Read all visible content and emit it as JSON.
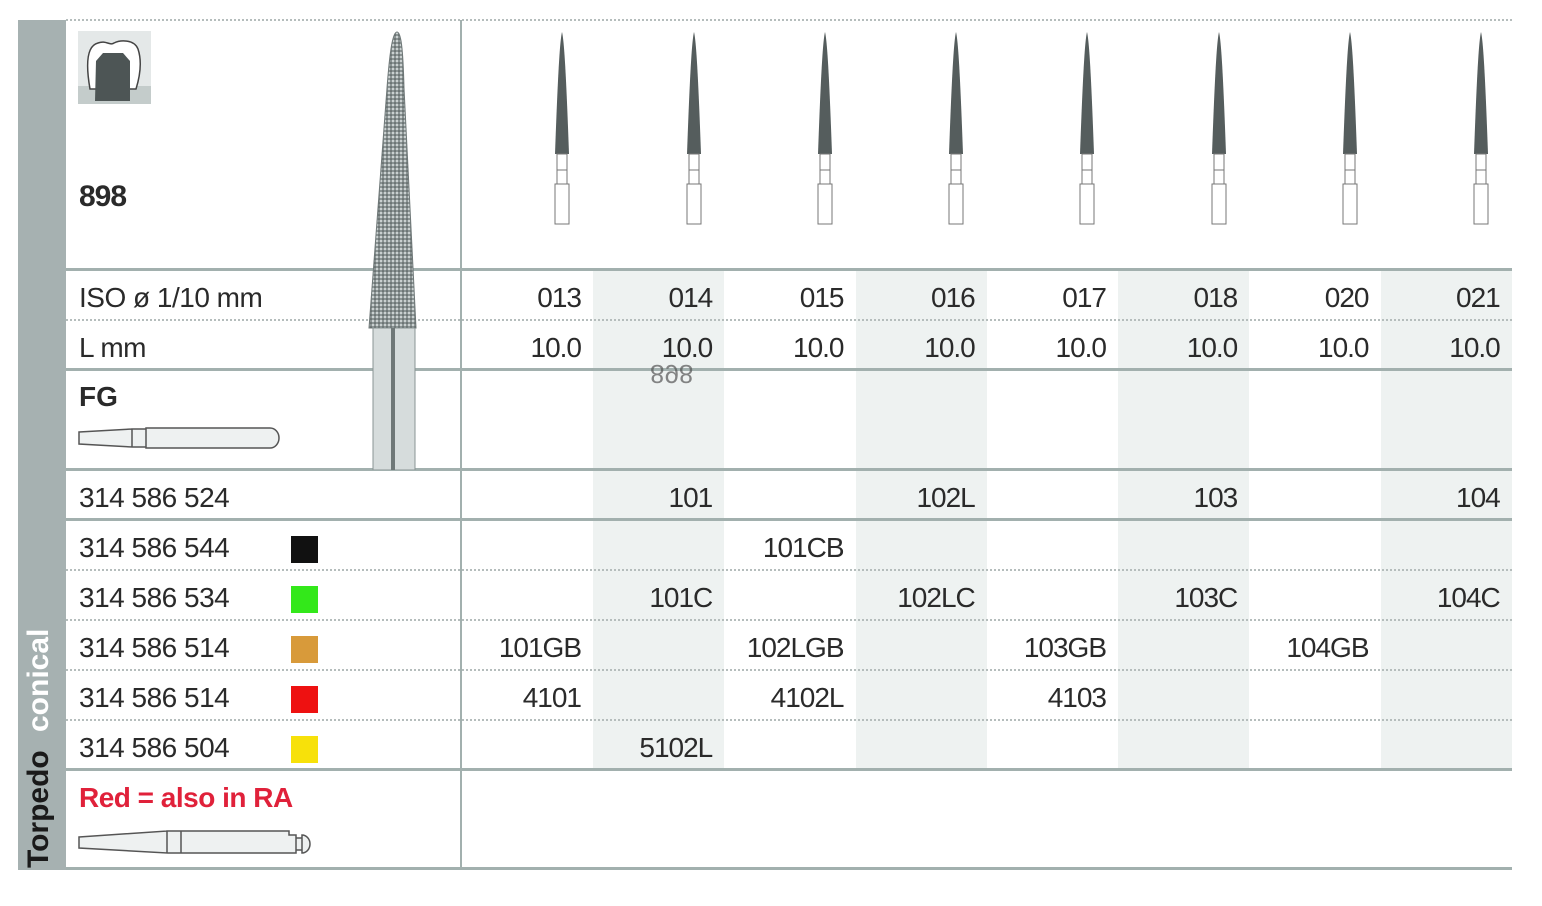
{
  "product_number": "898",
  "shape_label": "Torpedo",
  "shape_sublabel": "conical",
  "shank_type": "FG",
  "row_labels": {
    "iso": "ISO ø 1/10 mm",
    "length": "L mm"
  },
  "columns": [
    {
      "iso": "013",
      "length": "10.0"
    },
    {
      "iso": "014",
      "length": "10.0"
    },
    {
      "iso": "015",
      "length": "10.0"
    },
    {
      "iso": "016",
      "length": "10.0"
    },
    {
      "iso": "017",
      "length": "10.0"
    },
    {
      "iso": "018",
      "length": "10.0"
    },
    {
      "iso": "020",
      "length": "10.0"
    },
    {
      "iso": "021",
      "length": "10.0"
    }
  ],
  "ghost_text": "898",
  "rows": [
    {
      "code": "314 586 524",
      "color": null,
      "cells": [
        "",
        "101",
        "",
        "102L",
        "",
        "103",
        "",
        "104"
      ]
    },
    {
      "code": "314 586 544",
      "color": "#111111",
      "cells": [
        "",
        "",
        "101CB",
        "",
        "",
        "",
        "",
        ""
      ]
    },
    {
      "code": "314 586 534",
      "color": "#33e81a",
      "cells": [
        "",
        "101C",
        "",
        "102LC",
        "",
        "103C",
        "",
        "104C"
      ]
    },
    {
      "code": "314 586 514",
      "color": "#d89a3a",
      "cells": [
        "101GB",
        "",
        "102LGB",
        "",
        "103GB",
        "",
        "104GB",
        ""
      ]
    },
    {
      "code": "314 586 514",
      "color": "#ee1111",
      "cells": [
        "4101",
        "",
        "4102L",
        "",
        "4103",
        "",
        "",
        ""
      ]
    },
    {
      "code": "314 586 504",
      "color": "#f7e10a",
      "cells": [
        "",
        "5102L",
        "",
        "",
        "",
        "",
        "",
        ""
      ]
    }
  ],
  "note": "Red = also in RA",
  "colors": {
    "sidebar": "#a6b1b1",
    "shade": "#eef2f1",
    "note": "#e0213a"
  }
}
